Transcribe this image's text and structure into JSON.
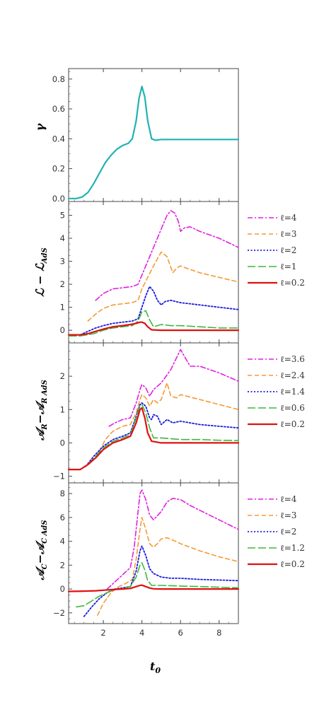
{
  "chart_data": [
    {
      "type": "line",
      "ylabel": "γ",
      "ylim": [
        -0.02,
        0.87
      ],
      "yticks": [
        "0.0",
        "0.2",
        "0.4",
        "0.6",
        "0.8"
      ],
      "ytick_values": [
        0,
        0.2,
        0.4,
        0.6,
        0.8
      ],
      "series": [
        {
          "color": "#1fb3b3",
          "dash": "solid",
          "x": [
            0.2,
            0.6,
            0.9,
            1.2,
            1.5,
            1.8,
            2.1,
            2.4,
            2.7,
            3.0,
            3.3,
            3.5,
            3.7,
            3.85,
            4.0,
            4.15,
            4.3,
            4.5,
            4.7,
            5.0,
            6.0,
            7.0,
            8.0,
            9.0
          ],
          "y": [
            0.0,
            0.0,
            0.01,
            0.04,
            0.1,
            0.17,
            0.24,
            0.29,
            0.33,
            0.355,
            0.37,
            0.4,
            0.52,
            0.67,
            0.75,
            0.68,
            0.52,
            0.4,
            0.39,
            0.395,
            0.395,
            0.395,
            0.395,
            0.395
          ]
        }
      ]
    },
    {
      "type": "line",
      "ylabel": "ℒ − ℒ",
      "ylabel_sub": "AdS",
      "ylim": [
        -0.55,
        5.6
      ],
      "yticks": [
        "0",
        "1",
        "2",
        "3",
        "4",
        "5"
      ],
      "ytick_values": [
        0,
        1,
        2,
        3,
        4,
        5
      ],
      "series": [
        {
          "name": "ℓ=4",
          "color": "#e020e0",
          "dash": "dashdot",
          "x": [
            1.6,
            2.0,
            2.5,
            3.0,
            3.5,
            3.8,
            4.0,
            4.3,
            4.6,
            5.0,
            5.3,
            5.5,
            5.7,
            5.9,
            6.0,
            6.2,
            6.5,
            7.0,
            8.0,
            9.0
          ],
          "y": [
            1.3,
            1.6,
            1.8,
            1.85,
            1.9,
            2.0,
            2.4,
            3.0,
            3.6,
            4.4,
            5.0,
            5.2,
            5.1,
            4.7,
            4.3,
            4.45,
            4.5,
            4.3,
            4.0,
            3.6
          ]
        },
        {
          "name": "ℓ=3",
          "color": "#f59a35",
          "dash": "dash",
          "x": [
            1.2,
            1.6,
            2.0,
            2.5,
            3.0,
            3.5,
            3.8,
            4.0,
            4.3,
            4.6,
            5.0,
            5.3,
            5.6,
            5.8,
            6.0,
            6.3,
            7.0,
            8.0,
            9.0
          ],
          "y": [
            0.4,
            0.7,
            0.95,
            1.1,
            1.15,
            1.2,
            1.3,
            1.8,
            2.3,
            2.8,
            3.4,
            3.2,
            2.5,
            2.7,
            2.8,
            2.7,
            2.5,
            2.3,
            2.1
          ]
        },
        {
          "name": "ℓ=2",
          "color": "#1a1ae0",
          "dash": "dot",
          "x": [
            0.8,
            1.2,
            1.6,
            2.0,
            2.5,
            3.0,
            3.5,
            3.8,
            4.0,
            4.2,
            4.4,
            4.6,
            4.8,
            5.0,
            5.2,
            5.5,
            6.0,
            7.0,
            8.0,
            9.0
          ],
          "y": [
            -0.2,
            -0.05,
            0.1,
            0.2,
            0.3,
            0.35,
            0.4,
            0.5,
            1.0,
            1.5,
            1.9,
            1.7,
            1.3,
            1.1,
            1.25,
            1.3,
            1.2,
            1.1,
            1.0,
            0.9
          ]
        },
        {
          "name": "ℓ=1",
          "color": "#3cb83c",
          "dash": "longdash",
          "x": [
            0.2,
            0.8,
            1.5,
            2.0,
            2.5,
            3.0,
            3.5,
            3.8,
            4.0,
            4.2,
            4.4,
            4.6,
            4.8,
            5.0,
            5.5,
            6.0,
            7.0,
            8.0,
            9.0
          ],
          "y": [
            -0.25,
            -0.25,
            -0.15,
            0.0,
            0.1,
            0.15,
            0.2,
            0.4,
            0.8,
            0.85,
            0.45,
            0.15,
            0.2,
            0.25,
            0.2,
            0.2,
            0.15,
            0.1,
            0.1
          ]
        },
        {
          "name": "ℓ=0.2",
          "color": "#e01010",
          "dash": "solid",
          "x": [
            0.2,
            0.8,
            1.2,
            1.6,
            2.0,
            2.5,
            3.0,
            3.4,
            3.7,
            3.9,
            4.0,
            4.15,
            4.3,
            4.5,
            5.0,
            6.0,
            7.0,
            8.0,
            9.0
          ],
          "y": [
            -0.2,
            -0.2,
            -0.15,
            -0.05,
            0.05,
            0.15,
            0.2,
            0.25,
            0.3,
            0.35,
            0.35,
            0.3,
            0.15,
            0.02,
            0.0,
            0.0,
            0.0,
            0.0,
            0.0
          ]
        }
      ]
    },
    {
      "type": "line",
      "ylabel": "𝒜",
      "ylabel_full": "𝒜R − 𝒜R AdS",
      "ylim": [
        -1.2,
        3.0
      ],
      "yticks": [
        "−1",
        "0",
        "1",
        "2"
      ],
      "ytick_values": [
        -1,
        0,
        1,
        2
      ],
      "series": [
        {
          "name": "ℓ=3.6",
          "color": "#e020e0",
          "dash": "dashdot",
          "x": [
            2.3,
            2.6,
            3.0,
            3.4,
            3.7,
            3.9,
            4.0,
            4.2,
            4.4,
            4.6,
            4.8,
            5.0,
            5.5,
            6.0,
            6.2,
            6.5,
            7.0,
            8.0,
            9.0
          ],
          "y": [
            0.5,
            0.6,
            0.7,
            0.75,
            1.2,
            1.6,
            1.75,
            1.65,
            1.4,
            1.6,
            1.7,
            1.8,
            2.2,
            2.8,
            2.6,
            2.3,
            2.3,
            2.1,
            1.85
          ]
        },
        {
          "name": "ℓ=2.4",
          "color": "#f59a35",
          "dash": "dash",
          "x": [
            1.8,
            2.1,
            2.5,
            3.0,
            3.4,
            3.7,
            3.9,
            4.0,
            4.2,
            4.4,
            4.6,
            4.8,
            5.0,
            5.3,
            5.5,
            5.8,
            6.0,
            7.0,
            8.0,
            9.0
          ],
          "y": [
            -0.25,
            0.1,
            0.35,
            0.5,
            0.55,
            0.9,
            1.3,
            1.45,
            1.35,
            1.1,
            1.3,
            1.2,
            1.3,
            1.8,
            1.4,
            1.35,
            1.45,
            1.3,
            1.15,
            1.0
          ]
        },
        {
          "name": "ℓ=1.4",
          "color": "#1a1ae0",
          "dash": "dot",
          "x": [
            1.1,
            1.5,
            2.0,
            2.5,
            3.0,
            3.4,
            3.7,
            3.9,
            4.0,
            4.2,
            4.4,
            4.5,
            4.6,
            4.8,
            5.0,
            5.3,
            5.6,
            6.0,
            7.0,
            8.0,
            9.0
          ],
          "y": [
            -0.7,
            -0.4,
            -0.1,
            0.1,
            0.2,
            0.3,
            0.8,
            1.15,
            1.2,
            1.1,
            0.75,
            0.7,
            0.85,
            0.8,
            0.55,
            0.7,
            0.6,
            0.65,
            0.55,
            0.5,
            0.45
          ]
        },
        {
          "name": "ℓ=0.6",
          "color": "#3cb83c",
          "dash": "longdash",
          "x": [
            0.2,
            0.8,
            1.2,
            1.6,
            2.0,
            2.5,
            3.0,
            3.4,
            3.7,
            3.9,
            4.0,
            4.2,
            4.4,
            4.6,
            5.0,
            6.0,
            7.0,
            8.0,
            9.0
          ],
          "y": [
            -0.8,
            -0.8,
            -0.65,
            -0.4,
            -0.15,
            0.05,
            0.15,
            0.25,
            0.75,
            1.1,
            1.15,
            0.9,
            0.45,
            0.15,
            0.15,
            0.1,
            0.1,
            0.08,
            0.07
          ]
        },
        {
          "name": "ℓ=0.2",
          "color": "#e01010",
          "dash": "solid",
          "x": [
            0.2,
            0.8,
            1.2,
            1.6,
            2.0,
            2.5,
            3.0,
            3.4,
            3.7,
            3.9,
            4.0,
            4.15,
            4.3,
            4.5,
            5.0,
            6.0,
            7.0,
            8.0,
            9.0
          ],
          "y": [
            -0.8,
            -0.8,
            -0.65,
            -0.45,
            -0.2,
            0.0,
            0.1,
            0.2,
            0.6,
            1.0,
            1.05,
            0.75,
            0.3,
            0.05,
            0.0,
            0.0,
            0.0,
            0.0,
            0.0
          ]
        }
      ]
    },
    {
      "type": "line",
      "ylabel": "𝒜",
      "ylabel_full": "𝒜C − 𝒜C AdS",
      "ylim": [
        -2.9,
        8.9
      ],
      "yticks": [
        "−2",
        "0",
        "2",
        "4",
        "6",
        "8"
      ],
      "ytick_values": [
        -2,
        0,
        2,
        4,
        6,
        8
      ],
      "xlabel": "t₀",
      "xlim": [
        0.2,
        9.0
      ],
      "xticks": [
        "2",
        "4",
        "6",
        "8"
      ],
      "xtick_values": [
        2,
        4,
        6,
        8
      ],
      "series": [
        {
          "name": "ℓ=4",
          "color": "#e020e0",
          "dash": "dashdot",
          "x": [
            2.2,
            2.6,
            3.0,
            3.4,
            3.6,
            3.8,
            3.9,
            4.0,
            4.2,
            4.4,
            4.6,
            5.0,
            5.3,
            5.6,
            6.0,
            6.5,
            7.0,
            8.0,
            9.0
          ],
          "y": [
            0.0,
            0.6,
            1.2,
            1.8,
            3.5,
            6.5,
            8.0,
            8.3,
            7.5,
            6.2,
            5.8,
            6.5,
            7.3,
            7.6,
            7.5,
            7.0,
            6.6,
            5.8,
            5.0
          ]
        },
        {
          "name": "ℓ=3",
          "color": "#f59a35",
          "dash": "dash",
          "x": [
            1.7,
            2.0,
            2.4,
            2.8,
            3.2,
            3.5,
            3.7,
            3.9,
            4.0,
            4.2,
            4.4,
            4.6,
            4.8,
            5.0,
            5.3,
            5.6,
            6.0,
            7.0,
            8.0,
            9.0
          ],
          "y": [
            -2.2,
            -1.2,
            -0.3,
            0.2,
            0.5,
            0.8,
            2.5,
            5.0,
            6.0,
            5.0,
            3.8,
            3.5,
            3.8,
            4.2,
            4.3,
            4.1,
            3.8,
            3.2,
            2.7,
            2.3
          ]
        },
        {
          "name": "ℓ=2",
          "color": "#1a1ae0",
          "dash": "dot",
          "x": [
            1.0,
            1.4,
            1.8,
            2.2,
            2.6,
            3.0,
            3.4,
            3.7,
            3.9,
            4.0,
            4.2,
            4.4,
            4.6,
            5.0,
            5.5,
            6.0,
            7.0,
            8.0,
            9.0
          ],
          "y": [
            -2.3,
            -1.5,
            -0.8,
            -0.3,
            0.0,
            0.1,
            0.2,
            1.5,
            3.2,
            3.6,
            2.8,
            1.7,
            1.3,
            1.0,
            0.9,
            0.9,
            0.8,
            0.75,
            0.7
          ]
        },
        {
          "name": "ℓ=1.2",
          "color": "#3cb83c",
          "dash": "longdash",
          "x": [
            0.6,
            1.0,
            1.4,
            1.8,
            2.2,
            2.6,
            3.0,
            3.4,
            3.7,
            3.9,
            4.0,
            4.15,
            4.3,
            4.5,
            5.0,
            6.0,
            7.0,
            8.0,
            9.0
          ],
          "y": [
            -1.5,
            -1.4,
            -1.0,
            -0.6,
            -0.3,
            -0.05,
            0.05,
            0.2,
            1.0,
            2.0,
            2.2,
            1.6,
            0.7,
            0.3,
            0.3,
            0.25,
            0.2,
            0.15,
            0.1
          ]
        },
        {
          "name": "ℓ=0.2",
          "color": "#e01010",
          "dash": "solid",
          "x": [
            0.2,
            1.0,
            1.6,
            2.0,
            2.5,
            3.0,
            3.4,
            3.7,
            3.9,
            4.0,
            4.2,
            4.4,
            4.6,
            5.0,
            6.0,
            7.0,
            8.0,
            9.0
          ],
          "y": [
            -0.2,
            -0.18,
            -0.15,
            -0.1,
            -0.05,
            0.0,
            0.05,
            0.2,
            0.3,
            0.32,
            0.2,
            0.08,
            0.02,
            0.0,
            0.0,
            0.0,
            0.0,
            0.0
          ]
        }
      ]
    }
  ],
  "labels": {
    "panel1_y": "γ",
    "panel2_y_main": "ℒ − ℒ",
    "panel2_y_sub": "AdS",
    "panel3_y_a": "𝒜",
    "panel3_y_sub1": "R",
    "panel3_y_mid": "−𝒜",
    "panel3_y_sub2": "R AdS",
    "panel4_y_a": "𝒜",
    "panel4_y_sub1": "C",
    "panel4_y_mid": "−𝒜",
    "panel4_y_sub2": "C AdS",
    "x_main": "t",
    "x_sub": "0"
  }
}
